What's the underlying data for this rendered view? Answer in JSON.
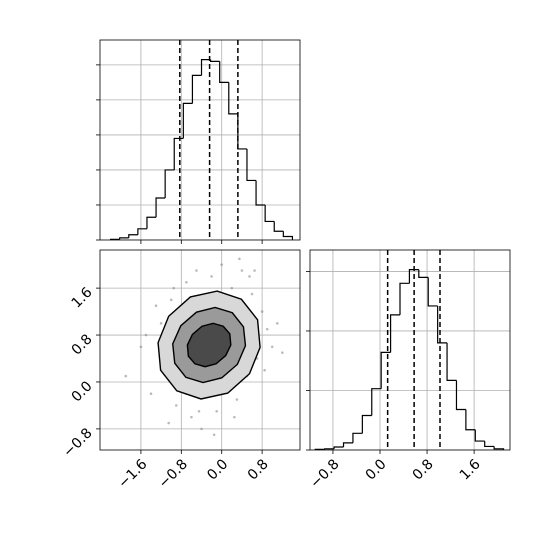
{
  "chart_data": [
    {
      "type": "histogram",
      "color": "#000000",
      "bins": [
        -2.2,
        -2.02,
        -1.84,
        -1.66,
        -1.48,
        -1.3,
        -1.12,
        -0.94,
        -0.76,
        -0.58,
        -0.4,
        -0.22,
        -0.04,
        0.14,
        0.32,
        0.5,
        0.68,
        0.86,
        1.04,
        1.22,
        1.4
      ],
      "values": [
        0.02,
        0.06,
        0.15,
        0.32,
        0.65,
        1.2,
        2.0,
        2.9,
        3.9,
        4.7,
        5.15,
        5.1,
        4.5,
        3.6,
        2.6,
        1.7,
        1.0,
        0.53,
        0.25,
        0.1
      ],
      "quantiles": [
        -0.83,
        -0.24,
        0.32
      ],
      "xlim": [
        -2.41,
        1.55
      ],
      "xticks": [
        -1.6,
        -0.8,
        0,
        0.8
      ],
      "ylim": [
        0,
        5.71
      ],
      "yticks": [
        0,
        1,
        2,
        3,
        4,
        5
      ],
      "grid": true
    },
    {
      "type": "contour",
      "color": "#000000",
      "x": [
        -1.9,
        -1.6,
        -1.4,
        -1.2,
        -1.1,
        -1.0,
        -0.9,
        -0.8,
        -0.7,
        -0.6,
        -0.5,
        -0.4,
        -0.3,
        -0.2,
        -0.1,
        0.0,
        0.1,
        0.2,
        0.3,
        0.4,
        0.5,
        0.6,
        0.7,
        0.8,
        0.9,
        1.0,
        1.1,
        -1.3,
        -0.95,
        -0.45,
        0.25,
        0.55,
        -1.5,
        -0.7,
        0.35,
        0.85,
        -1.05,
        -0.15,
        0.65,
        1.2
      ],
      "y": [
        0.1,
        0.6,
        -0.2,
        1.0,
        0.3,
        1.4,
        -0.4,
        0.9,
        1.7,
        -0.6,
        1.9,
        -0.8,
        1.2,
        1.8,
        -0.5,
        2.0,
        0.0,
        1.6,
        -0.3,
        1.9,
        0.1,
        1.5,
        0.4,
        1.2,
        0.9,
        0.6,
        1.0,
        1.3,
        1.6,
        -0.5,
        -0.6,
        1.8,
        0.8,
        -0.2,
        2.1,
        0.2,
        -0.7,
        -0.9,
        1.9,
        0.5
      ],
      "contours": [
        {
          "x": [
            0.71,
            0.39,
            -0.09,
            -0.62,
            -1.05,
            -1.26,
            -1.21,
            -0.89,
            -0.41,
            0.12,
            0.55,
            0.76
          ],
          "y": [
            1.06,
            1.41,
            1.55,
            1.45,
            1.12,
            0.67,
            0.2,
            -0.15,
            -0.29,
            -0.19,
            0.14,
            0.59
          ]
        },
        {
          "x": [
            0.43,
            0.21,
            -0.13,
            -0.5,
            -0.81,
            -0.97,
            -0.93,
            -0.71,
            -0.37,
            0.0,
            0.31,
            0.47
          ],
          "y": [
            0.94,
            1.18,
            1.27,
            1.19,
            0.96,
            0.65,
            0.32,
            0.08,
            -0.01,
            0.07,
            0.3,
            0.62
          ]
        },
        {
          "x": [
            0.16,
            0.03,
            -0.17,
            -0.39,
            -0.58,
            -0.68,
            -0.66,
            -0.53,
            -0.33,
            -0.11,
            0.08,
            0.18
          ],
          "y": [
            0.82,
            0.95,
            1.0,
            0.95,
            0.81,
            0.63,
            0.44,
            0.31,
            0.26,
            0.31,
            0.45,
            0.63
          ]
        }
      ],
      "xlim": [
        -2.41,
        1.55
      ],
      "xticks": [
        {
          "value": -1.6,
          "label": "−1.6"
        },
        {
          "value": -0.8,
          "label": "−0.8"
        },
        {
          "value": 0,
          "label": "0.0"
        },
        0.8
      ],
      "ylim": [
        -1.16,
        2.25
      ],
      "yticks": [
        {
          "value": -0.8,
          "label": "−0.8"
        },
        {
          "value": 0,
          "label": "0.0"
        },
        0.8,
        1.6
      ],
      "grid": true
    },
    {
      "type": "histogram",
      "color": "#000000",
      "bins": [
        -1.1,
        -0.94,
        -0.78,
        -0.62,
        -0.46,
        -0.3,
        -0.14,
        0.02,
        0.18,
        0.34,
        0.5,
        0.66,
        0.82,
        0.98,
        1.14,
        1.3,
        1.46,
        1.62,
        1.78,
        1.94,
        2.1
      ],
      "values": [
        0.01,
        0.02,
        0.05,
        0.12,
        0.28,
        0.58,
        1.03,
        1.64,
        2.27,
        2.8,
        3.03,
        2.9,
        2.42,
        1.8,
        1.17,
        0.68,
        0.34,
        0.15,
        0.06,
        0.02
      ],
      "quantiles": [
        0.13,
        0.58,
        1.02
      ],
      "xlim": [
        -1.19,
        2.21
      ],
      "xticks": [
        {
          "value": -0.8,
          "label": "−0.8"
        },
        {
          "value": 0,
          "label": "0.0"
        },
        0.8,
        1.6
      ],
      "ylim": [
        0,
        3.36
      ],
      "yticks": [
        0,
        1,
        2,
        3
      ],
      "grid": true
    }
  ]
}
